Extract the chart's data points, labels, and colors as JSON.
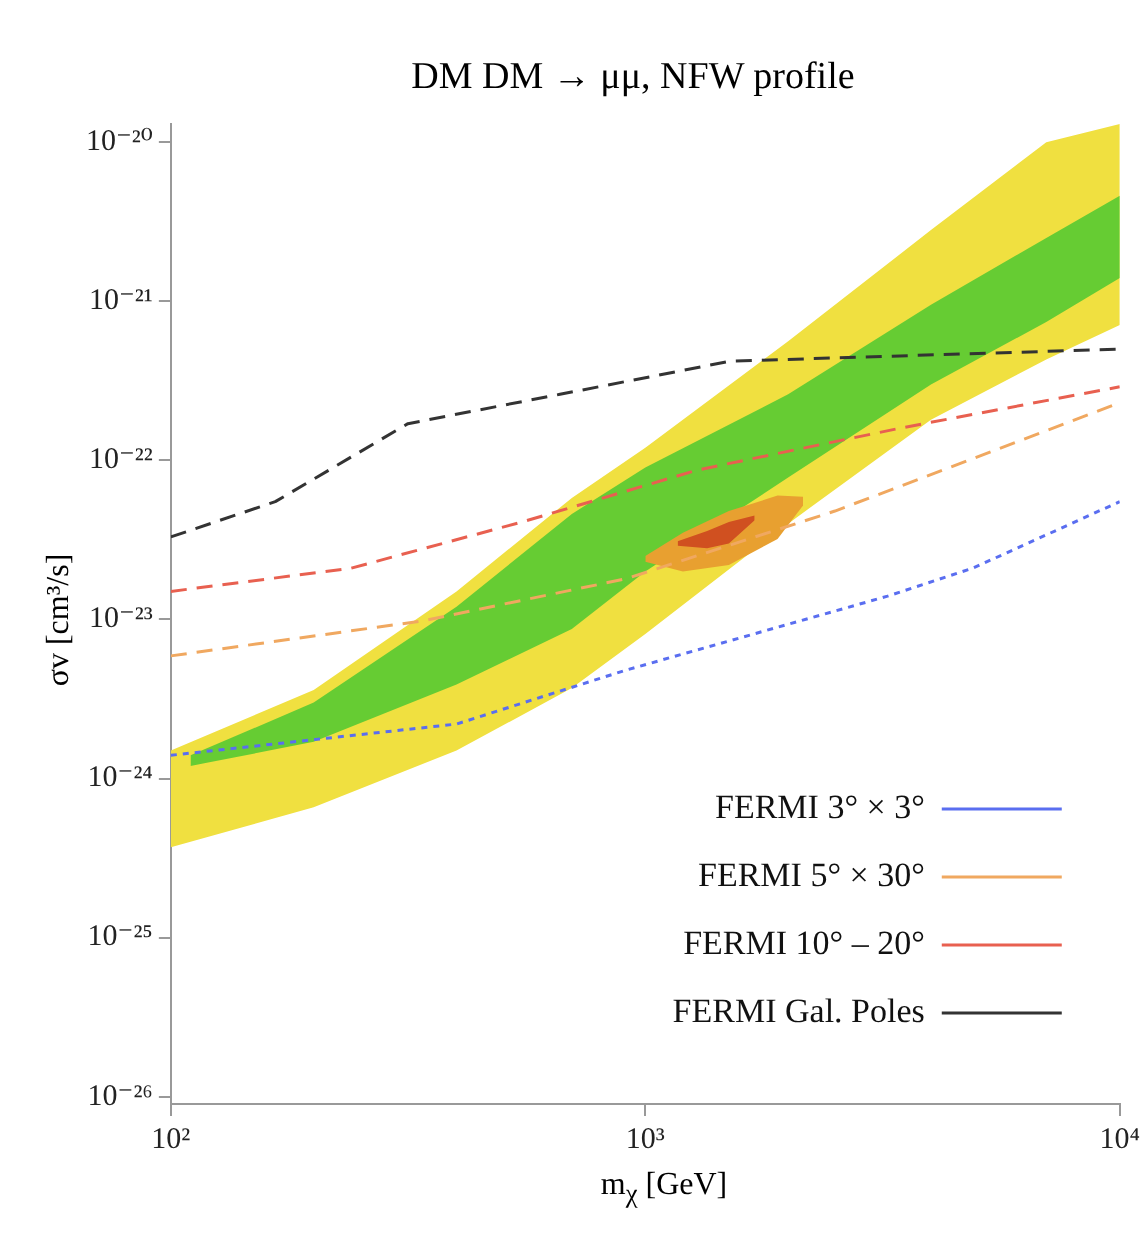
{
  "chart_data": {
    "type": "line",
    "title": "DM DM → μμ,  NFW profile",
    "xlabel": "m$_{χ}$  [GeV]",
    "ylabel": "σv [cm³/s]",
    "log": "xy",
    "grid": false,
    "legend": "bottom right",
    "xlim": [
      100,
      10000
    ],
    "xticks": [
      {
        "value": 100,
        "label": "10²"
      },
      {
        "value": 1000,
        "label": "10³"
      },
      {
        "value": 10000,
        "label": "10⁴"
      }
    ],
    "ylim": [
      9e-27,
      1.3e-20
    ],
    "yticks": [
      {
        "value": 1e-26,
        "label": "10⁻²⁶"
      },
      {
        "value": 1e-25,
        "label": "10⁻²⁵"
      },
      {
        "value": 1e-24,
        "label": "10⁻²⁴"
      },
      {
        "value": 1e-23,
        "label": "10⁻²³"
      },
      {
        "value": 1e-22,
        "label": "10⁻²²"
      },
      {
        "value": 1e-21,
        "label": "10⁻²¹"
      },
      {
        "value": 1e-20,
        "label": "10⁻²⁰"
      }
    ],
    "series": [
      {
        "type": "area",
        "color": "#f0e040",
        "x": [
          100,
          200,
          400,
          700,
          1000,
          2000,
          4000,
          7000,
          10000
        ],
        "values": [
          null,
          null,
          null,
          null,
          null,
          null,
          null,
          null,
          null
        ],
        "lower": [
          3.7e-25,
          6.6e-25,
          1.5e-24,
          3.7e-24,
          8.1e-24,
          4e-23,
          1.8e-22,
          4.3e-22,
          7.1e-22
        ],
        "upper": [
          1.5e-24,
          3.6e-24,
          1.5e-23,
          5.8e-23,
          1.2e-22,
          5.6e-22,
          2.8e-21,
          1e-20,
          1.3e-20
        ]
      },
      {
        "type": "area",
        "color": "#66cc33",
        "x": [
          110,
          200,
          400,
          700,
          1000,
          2000,
          4000,
          7000,
          10000
        ],
        "values": [
          null,
          null,
          null,
          null,
          null,
          null,
          null,
          null,
          null
        ],
        "lower": [
          1.2e-24,
          1.7e-24,
          3.9e-24,
          8.7e-24,
          2e-23,
          7.8e-23,
          3e-22,
          7.4e-22,
          1.4e-21
        ],
        "upper": [
          1.4e-24,
          3e-24,
          1.2e-23,
          4.6e-23,
          9e-23,
          2.6e-22,
          9.5e-22,
          2.5e-21,
          4.6e-21
        ]
      },
      {
        "type": "area",
        "color": "#e8a030",
        "x": [
          1000,
          1200,
          1500,
          1900,
          2150
        ],
        "values": [
          null,
          null,
          null,
          null,
          null
        ],
        "lower": [
          2.3e-23,
          2e-23,
          2.2e-23,
          3.2e-23,
          5.2e-23
        ],
        "upper": [
          2.5e-23,
          3.5e-23,
          4.8e-23,
          6e-23,
          5.9e-23
        ]
      },
      {
        "type": "area",
        "color": "#d05020",
        "x": [
          1170,
          1350,
          1500,
          1700
        ],
        "values": [
          null,
          null,
          null,
          null
        ],
        "lower": [
          2.9e-23,
          2.8e-23,
          3e-23,
          4.2e-23
        ],
        "upper": [
          3.1e-23,
          3.6e-23,
          4.1e-23,
          4.5e-23
        ]
      },
      {
        "name": "FERMI 3° × 3°",
        "color": "#5a6ef0",
        "line_style": "dotted",
        "x": [
          100,
          400,
          910,
          3240,
          4900,
          10000
        ],
        "values": [
          1.4e-24,
          2.2e-24,
          4.8e-24,
          1.4e-23,
          2.1e-23,
          5.5e-23
        ]
      },
      {
        "name": "FERMI 5° × 30°",
        "color": "#f0a860",
        "line_style": "dashed",
        "x": [
          100,
          340,
          910,
          2510,
          10000
        ],
        "values": [
          5.9e-24,
          9.8e-24,
          1.8e-23,
          4.8e-23,
          2.3e-22
        ]
      },
      {
        "name": "FERMI 10° – 20°",
        "color": "#e86050",
        "line_style": "dashed",
        "x": [
          100,
          240,
          550,
          1290,
          3470,
          10000
        ],
        "values": [
          1.5e-23,
          2.1e-23,
          4.1e-23,
          8.7e-23,
          1.6e-22,
          2.9e-22
        ]
      },
      {
        "name": "FERMI Gal. Poles",
        "color": "#333333",
        "line_style": "dashed",
        "x": [
          100,
          166,
          316,
          661,
          1510,
          10000
        ],
        "values": [
          3.3e-23,
          5.5e-23,
          1.7e-22,
          2.6e-22,
          4.2e-22,
          5e-22
        ]
      }
    ]
  }
}
